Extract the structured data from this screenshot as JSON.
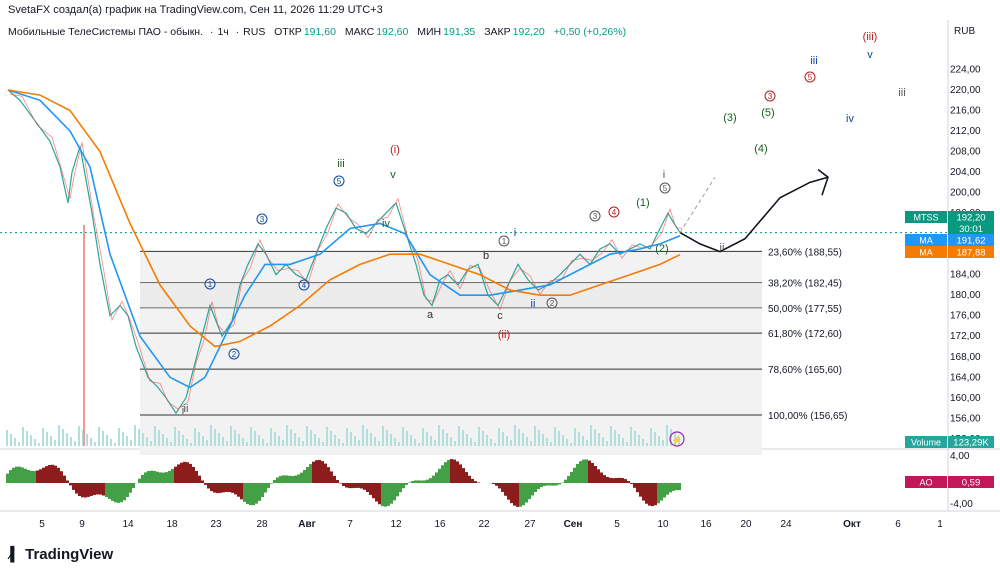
{
  "header": {
    "created_by": "SvetaFX создал(а) график на TradingView.com, Сен 11, 2026 11:29 UTC+3"
  },
  "legend": {
    "symbol": "Мобильные ТелеСистемы ПАО - обыкн.",
    "interval": "1ч",
    "exchange": "RUS",
    "open_label": "ОТКР",
    "open": "191,60",
    "high_label": "МАКС",
    "high": "192,60",
    "low_label": "МИН",
    "low": "191,35",
    "close_label": "ЗАКР",
    "close": "192,20",
    "change": "+0,50 (+0,26%)"
  },
  "price_axis": {
    "currency": "RUB",
    "ticks": [
      "224,00",
      "220,00",
      "216,00",
      "212,00",
      "208,00",
      "204,00",
      "200,00",
      "196,00",
      "188,00",
      "184,00",
      "180,00",
      "176,00",
      "172,00",
      "168,00",
      "164,00",
      "160,00",
      "156,00",
      "152,00"
    ]
  },
  "price_tags": {
    "mtss": {
      "label": "MTSS",
      "value": "192,20",
      "timer": "30:01",
      "color": "#089981"
    },
    "ma1": {
      "label": "MA",
      "value": "191,62",
      "color": "#2196f3"
    },
    "ma2": {
      "label": "MA",
      "value": "187,88",
      "color": "#f57c00"
    },
    "volume": {
      "label": "Volume",
      "value": "123,29K",
      "color": "#26a69a"
    },
    "ao": {
      "label": "AO",
      "value": "0,59",
      "color": "#c2185b"
    }
  },
  "ao_axis": {
    "top": "4,00",
    "bottom": "-4,00"
  },
  "time_axis": [
    "5",
    "9",
    "14",
    "18",
    "23",
    "28",
    "Авг",
    "7",
    "12",
    "16",
    "22",
    "27",
    "Сен",
    "5",
    "10",
    "16",
    "20",
    "24",
    "Окт",
    "6",
    "1"
  ],
  "fibonacci": [
    {
      "label": "23,60% (188,55)",
      "price": 188.55
    },
    {
      "label": "38,20% (182,45)",
      "price": 182.45
    },
    {
      "label": "50,00% (177,55)",
      "price": 177.55
    },
    {
      "label": "61,80% (172,60)",
      "price": 172.6
    },
    {
      "label": "78,60% (165,60)",
      "price": 165.6
    },
    {
      "label": "100,00% (156,65)",
      "price": 156.65
    }
  ],
  "wave_labels": [
    {
      "text": "i",
      "color": "#555555"
    },
    {
      "text": "ii",
      "color": "#555555"
    },
    {
      "text": "iii",
      "color": "#1b5e20"
    },
    {
      "text": "iv",
      "color": "#1b5e20"
    },
    {
      "text": "v",
      "color": "#1b5e20"
    },
    {
      "text": "(i)",
      "color": "#b71c1c"
    },
    {
      "text": "(ii)",
      "color": "#b71c1c"
    },
    {
      "text": "(iii)",
      "color": "#b71c1c"
    },
    {
      "text": "a",
      "color": "#333333"
    },
    {
      "text": "b",
      "color": "#333333"
    },
    {
      "text": "c",
      "color": "#333333"
    },
    {
      "text": "i",
      "color": "#0d47a1"
    },
    {
      "text": "ii",
      "color": "#0d47a1"
    },
    {
      "text": "iii",
      "color": "#0d47a1"
    },
    {
      "text": "iv",
      "color": "#0d47a1"
    },
    {
      "text": "v",
      "color": "#0d47a1"
    },
    {
      "text": "(1)",
      "color": "#1b5e20"
    },
    {
      "text": "(2)",
      "color": "#1b5e20"
    },
    {
      "text": "(3)",
      "color": "#1b5e20"
    },
    {
      "text": "(4)",
      "color": "#1b5e20"
    },
    {
      "text": "(5)",
      "color": "#1b5e20"
    },
    {
      "text": "i",
      "color": "#555555"
    },
    {
      "text": "ii",
      "color": "#555555"
    },
    {
      "text": "iii",
      "color": "#555555"
    }
  ],
  "circled_labels": [
    "1",
    "2",
    "3",
    "4",
    "5",
    "1",
    "2",
    "3",
    "4",
    "5",
    "3",
    "5"
  ],
  "footer": {
    "brand": "TradingView"
  },
  "chart_data": {
    "type": "line",
    "title": "Мобильные ТелеСистемы ПАО - обыкн. · 1ч · RUS",
    "xlabel": "",
    "ylabel": "RUB",
    "ylim": [
      150,
      226
    ],
    "x": [
      "5",
      "9",
      "14",
      "18",
      "23",
      "28",
      "Авг",
      "7",
      "12",
      "16",
      "22",
      "27",
      "Сен",
      "5",
      "10"
    ],
    "series": [
      {
        "name": "MTSS",
        "values": [
          220,
          214,
          178,
          160,
          176,
          188,
          190,
          196,
          198,
          180,
          178,
          182,
          188,
          190,
          192.2
        ]
      },
      {
        "name": "MA",
        "values": [
          219,
          213,
          190,
          164,
          170,
          184,
          188,
          194,
          192,
          184,
          180,
          181,
          186,
          188,
          191.62
        ]
      },
      {
        "name": "MA",
        "values": [
          219,
          216,
          200,
          176,
          172,
          176,
          182,
          188,
          188,
          186,
          183,
          180,
          182,
          185,
          187.88
        ]
      }
    ],
    "legend": "none",
    "grid": false
  }
}
